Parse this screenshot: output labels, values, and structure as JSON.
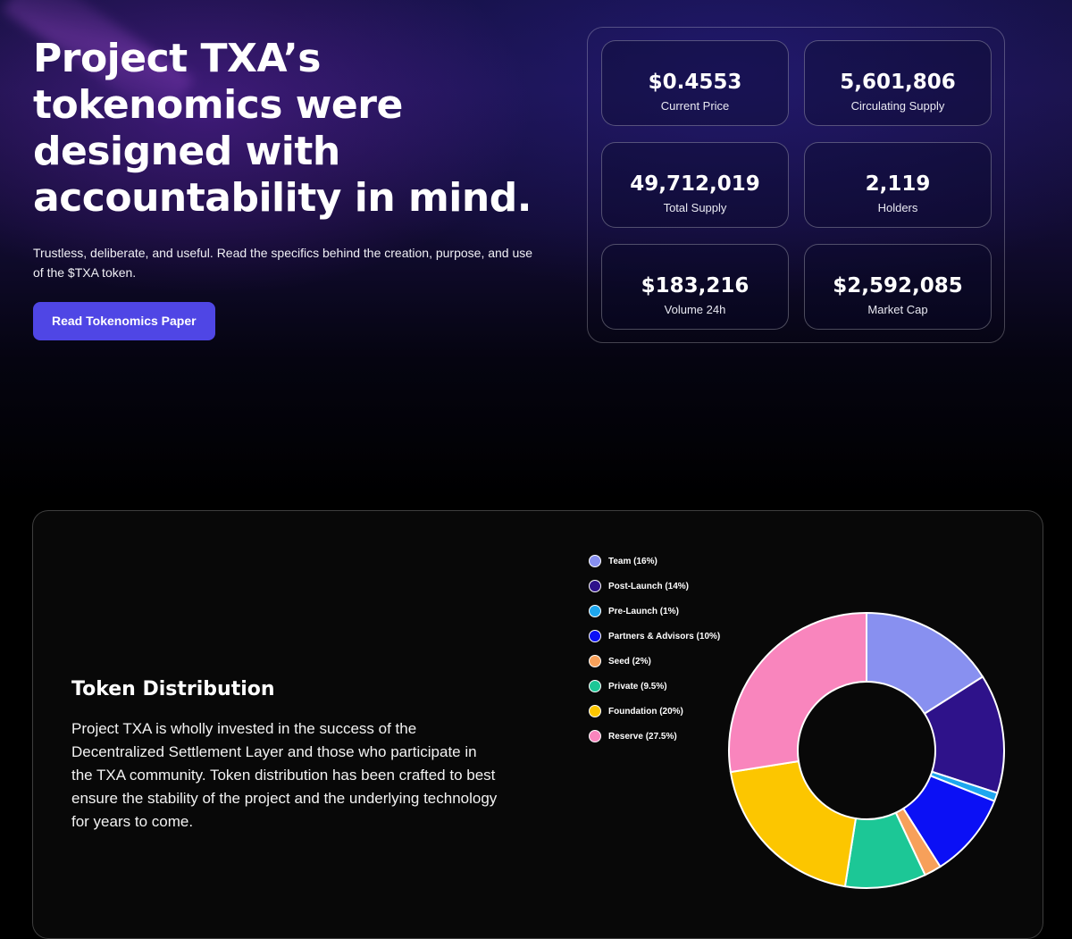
{
  "hero": {
    "title": "Project TXA’s tokenomics were designed with accountability in mind.",
    "description": "Trustless, deliberate, and useful. Read the specifics behind the creation, purpose, and use of the $TXA token.",
    "cta_label": "Read Tokenomics Paper"
  },
  "stats": [
    {
      "value": "$0.4553",
      "label": "Current Price"
    },
    {
      "value": "5,601,806",
      "label": "Circulating Supply"
    },
    {
      "value": "49,712,019",
      "label": "Total Supply"
    },
    {
      "value": "2,119",
      "label": "Holders"
    },
    {
      "value": "$183,216",
      "label": "Volume 24h"
    },
    {
      "value": "$2,592,085",
      "label": "Market Cap"
    }
  ],
  "distribution": {
    "title": "Token Distribution",
    "description": "Project TXA is wholly invested in the success of the Decentralized Settlement Layer and those who participate in the TXA community. Token distribution has been crafted to best ensure the stability of the project and the underlying technology for years to come."
  },
  "chart_data": {
    "type": "pie",
    "donut": true,
    "legend_position": "left",
    "labels": [
      "Team (16%)",
      "Post-Launch (14%)",
      "Pre-Launch (1%)",
      "Partners & Advisors (10%)",
      "Seed (2%)",
      "Private (9.5%)",
      "Foundation (20%)",
      "Reserve (27.5%)"
    ],
    "values": [
      16,
      14,
      1,
      10,
      2,
      9.5,
      20,
      27.5
    ],
    "colors": [
      "#8890f0",
      "#2e128a",
      "#1ea7ef",
      "#0b10f5",
      "#f7a05a",
      "#1cc796",
      "#fcc600",
      "#f985bd"
    ]
  }
}
